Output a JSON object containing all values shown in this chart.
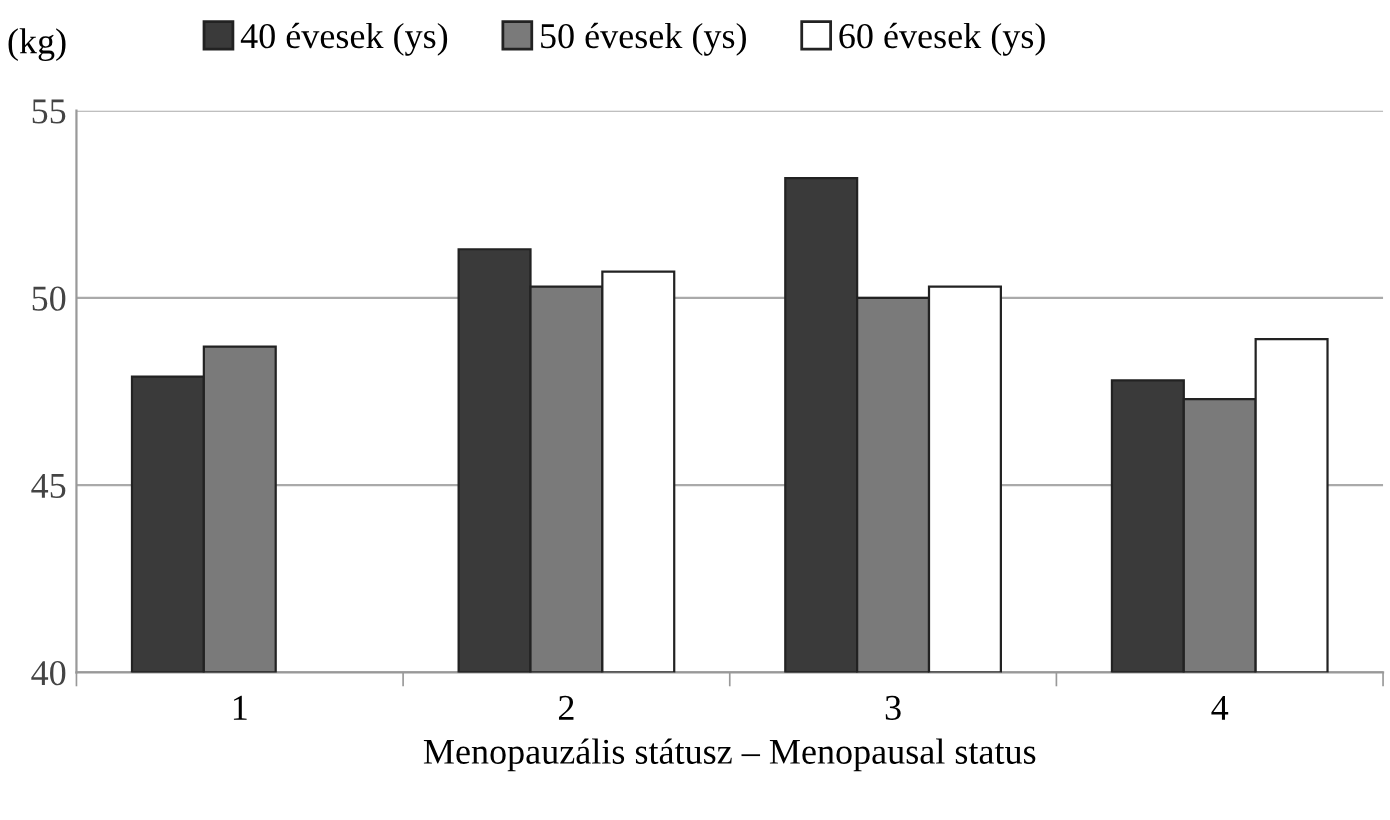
{
  "chart_data": {
    "type": "bar",
    "ylabel": "(kg)",
    "xlabel": "Menopauzális státusz – Menopausal status",
    "categories": [
      "1",
      "2",
      "3",
      "4"
    ],
    "series": [
      {
        "name": "40 évesek (ys)",
        "color": "#3a3a3a",
        "values": [
          47.9,
          51.3,
          53.2,
          47.8
        ]
      },
      {
        "name": "50 évesek (ys)",
        "color": "#7a7a7a",
        "values": [
          48.7,
          50.3,
          50.0,
          47.3
        ]
      },
      {
        "name": "60 évesek (ys)",
        "color": "#ffffff",
        "values": [
          null,
          50.7,
          50.3,
          48.9
        ]
      }
    ],
    "ylim": [
      40,
      55
    ],
    "yticks": [
      40,
      45,
      50,
      55
    ],
    "grid": "y",
    "legend": "top"
  }
}
